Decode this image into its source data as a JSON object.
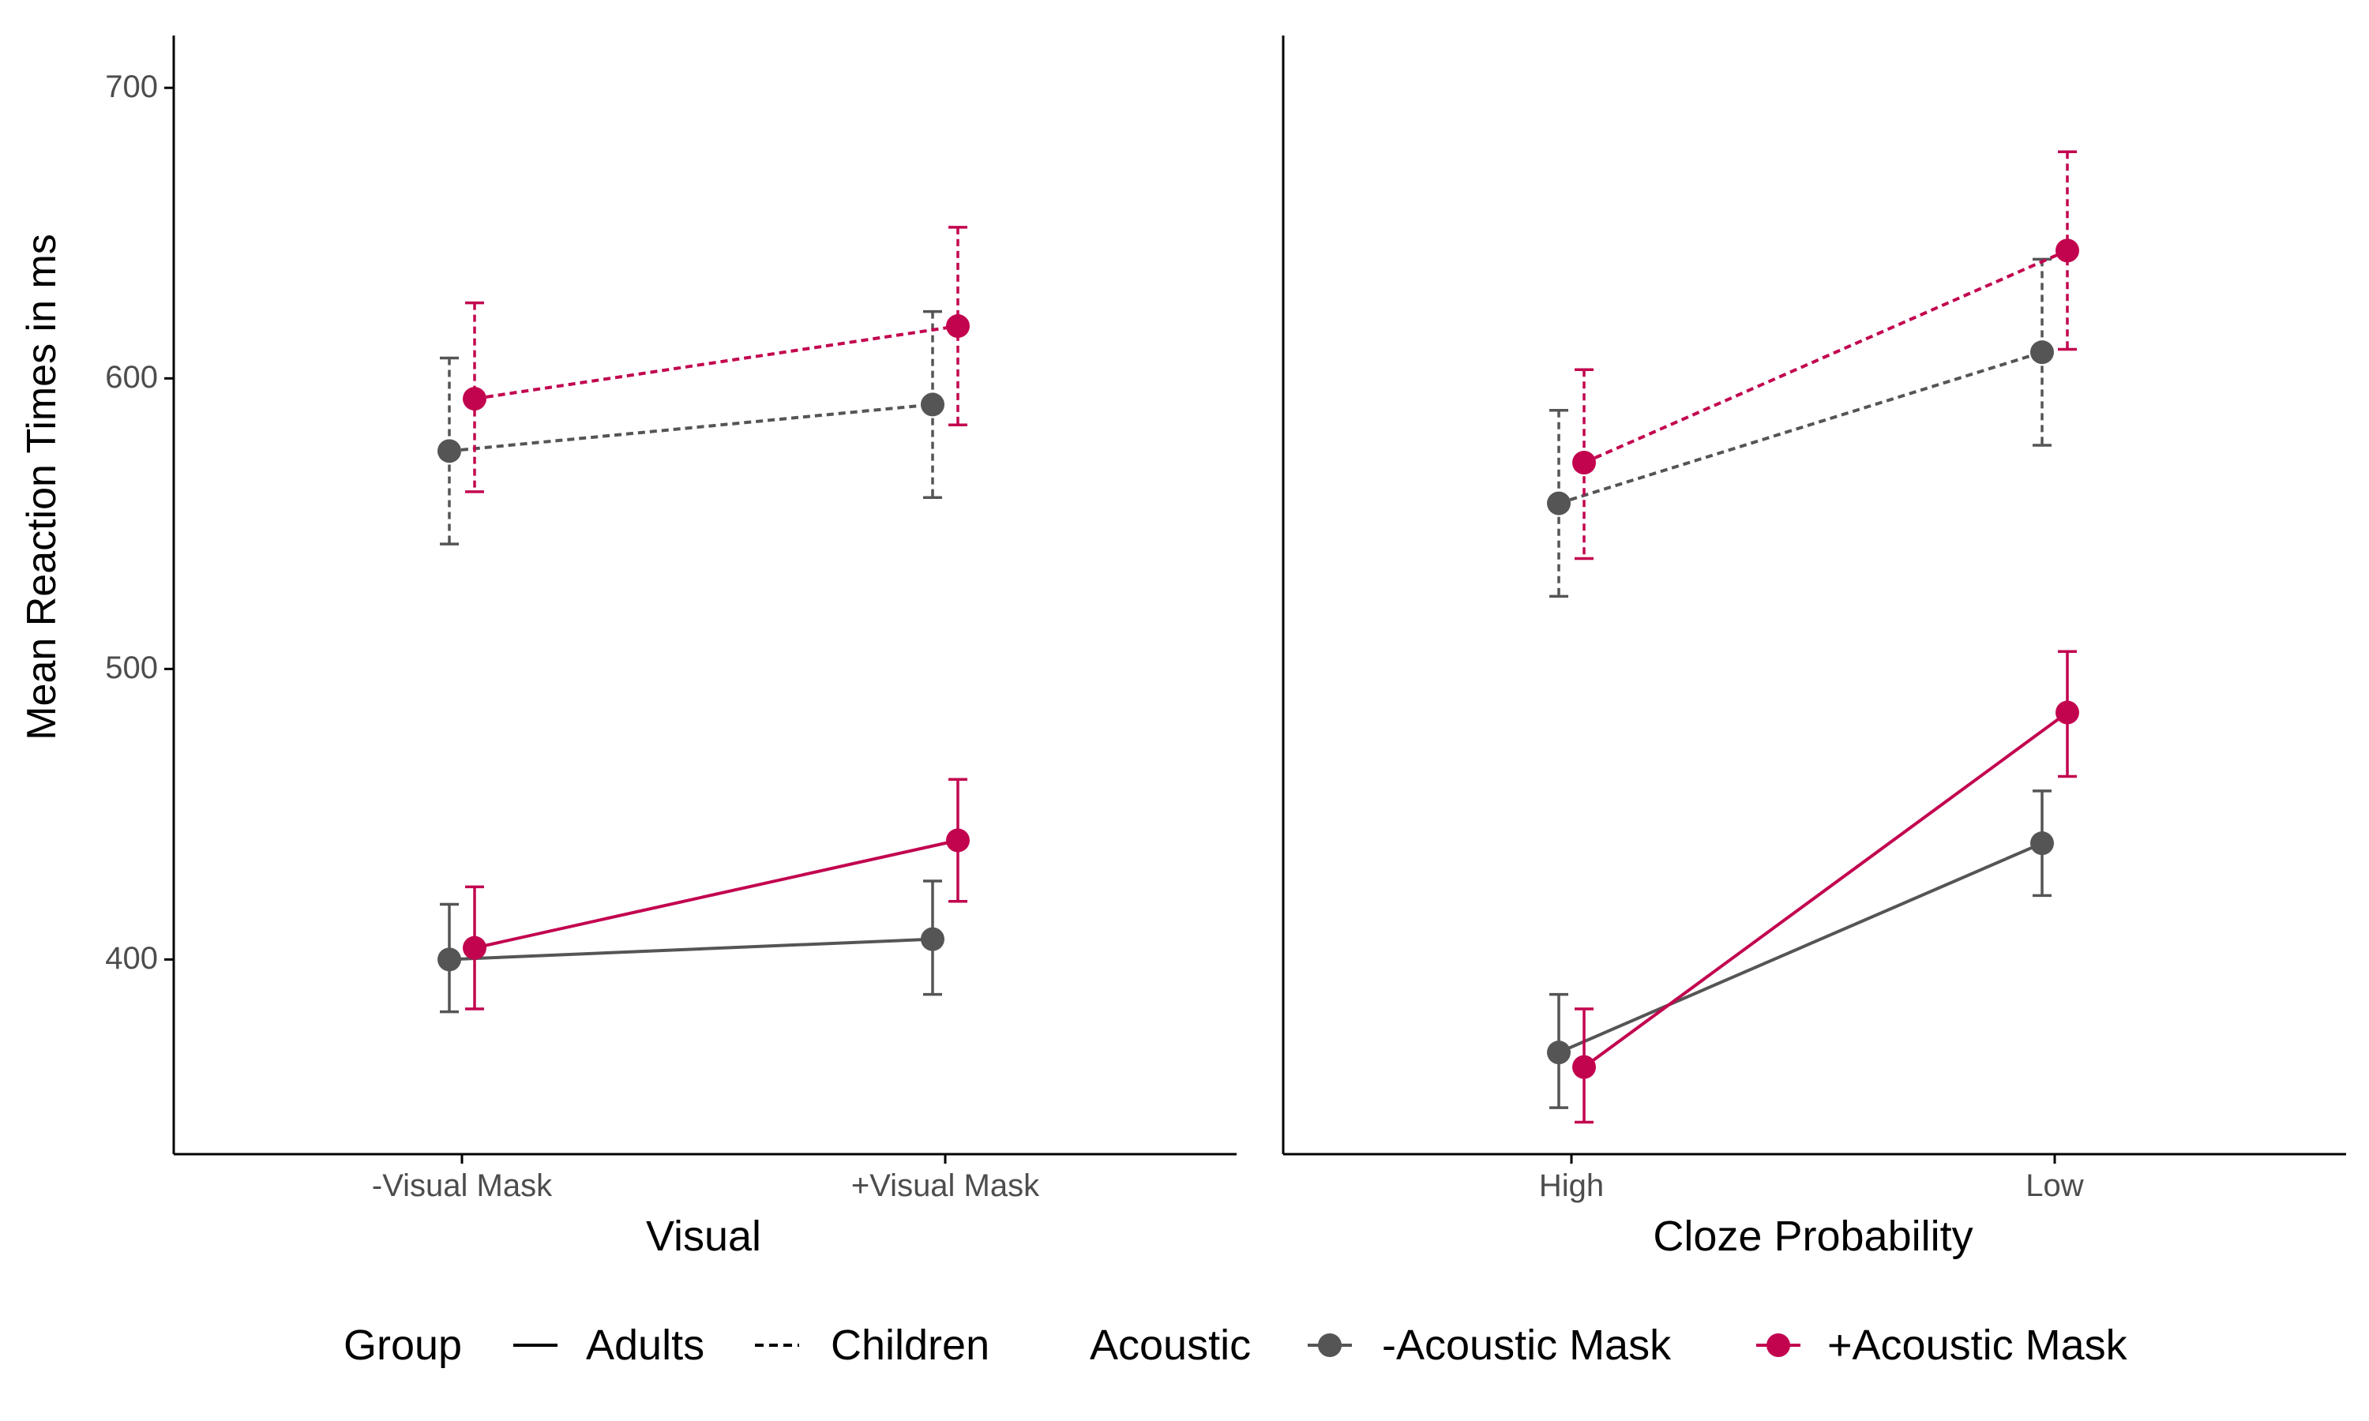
{
  "chart_data": {
    "type": "line",
    "ylabel": "Mean Reaction Times in ms",
    "y_ticks": [
      400,
      500,
      600,
      700
    ],
    "ylim": [
      333,
      718
    ],
    "grid": false,
    "colors": {
      "-Acoustic Mask": "#555555",
      "+Acoustic Mask": "#C2044F",
      "axis": "#000000",
      "tick_label": "#4D4D4D"
    },
    "legend": {
      "position": "bottom",
      "group_title": "Group",
      "group_items": [
        {
          "label": "Adults",
          "linetype": "solid"
        },
        {
          "label": "Children",
          "linetype": "dashed"
        }
      ],
      "acoustic_title": "Acoustic",
      "acoustic_items": [
        {
          "label": "-Acoustic Mask",
          "color": "#555555"
        },
        {
          "label": "+Acoustic Mask",
          "color": "#C2044F"
        }
      ]
    },
    "panels": [
      {
        "xlabel": "Visual",
        "categories": [
          "-Visual Mask",
          "+Visual Mask"
        ],
        "series": [
          {
            "group": "Adults",
            "acoustic": "-Acoustic Mask",
            "values": [
              400,
              407
            ],
            "lower": [
              382,
              388
            ],
            "upper": [
              419,
              427
            ]
          },
          {
            "group": "Adults",
            "acoustic": "+Acoustic Mask",
            "values": [
              404,
              441
            ],
            "lower": [
              383,
              420
            ],
            "upper": [
              425,
              462
            ]
          },
          {
            "group": "Children",
            "acoustic": "-Acoustic Mask",
            "values": [
              575,
              591
            ],
            "lower": [
              543,
              559
            ],
            "upper": [
              607,
              623
            ]
          },
          {
            "group": "Children",
            "acoustic": "+Acoustic Mask",
            "values": [
              593,
              618
            ],
            "lower": [
              561,
              584
            ],
            "upper": [
              626,
              652
            ]
          }
        ]
      },
      {
        "xlabel": "Cloze Probability",
        "categories": [
          "High",
          "Low"
        ],
        "series": [
          {
            "group": "Adults",
            "acoustic": "-Acoustic Mask",
            "values": [
              368,
              440
            ],
            "lower": [
              349,
              422
            ],
            "upper": [
              388,
              458
            ]
          },
          {
            "group": "Adults",
            "acoustic": "+Acoustic Mask",
            "values": [
              363,
              485
            ],
            "lower": [
              344,
              463
            ],
            "upper": [
              383,
              506
            ]
          },
          {
            "group": "Children",
            "acoustic": "-Acoustic Mask",
            "values": [
              557,
              609
            ],
            "lower": [
              525,
              577
            ],
            "upper": [
              589,
              641
            ]
          },
          {
            "group": "Children",
            "acoustic": "+Acoustic Mask",
            "values": [
              571,
              644
            ],
            "lower": [
              538,
              610
            ],
            "upper": [
              603,
              678
            ]
          }
        ]
      }
    ]
  }
}
